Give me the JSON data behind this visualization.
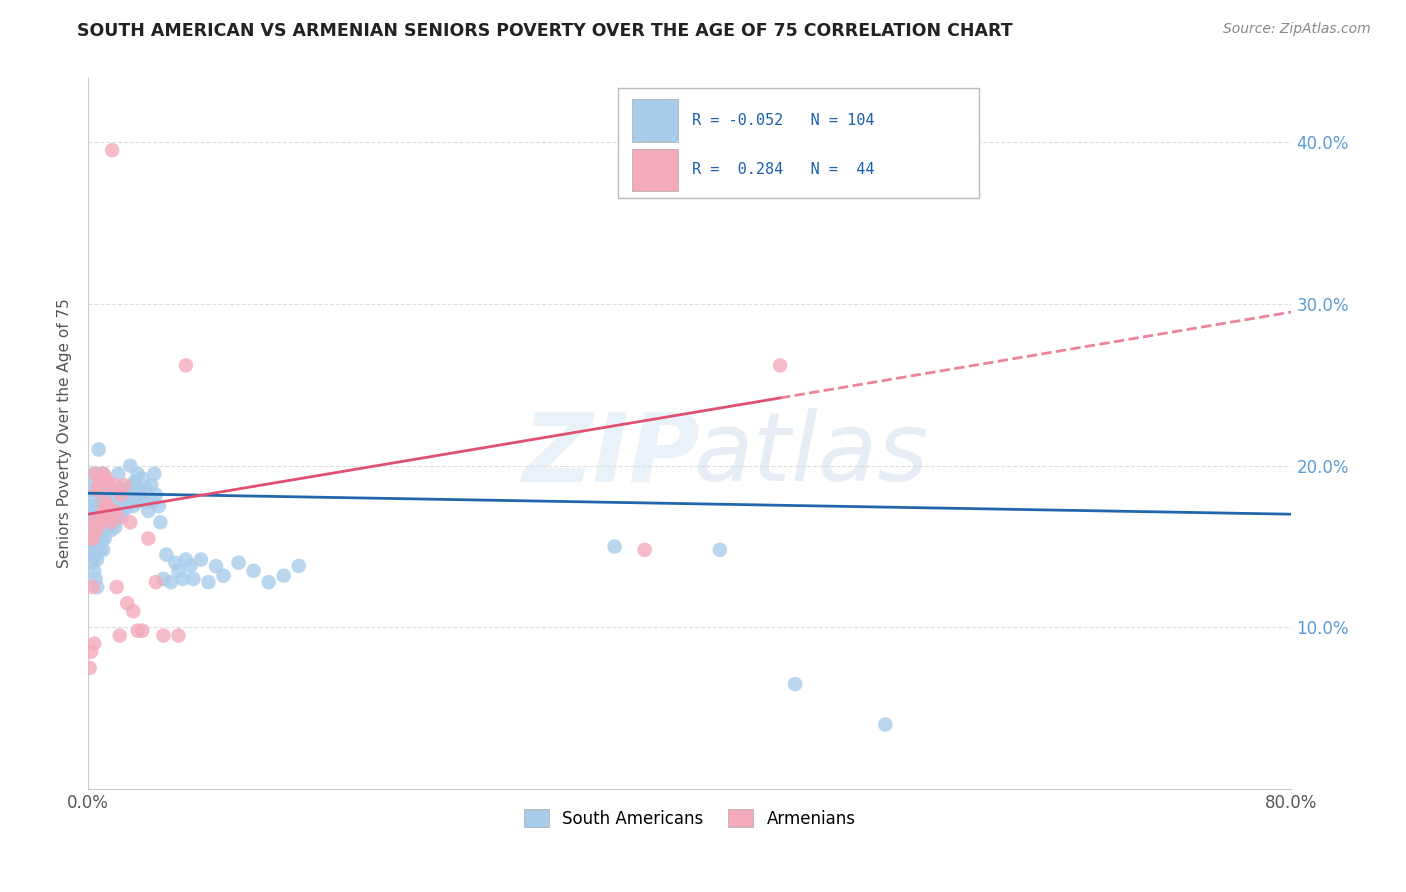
{
  "title": "SOUTH AMERICAN VS ARMENIAN SENIORS POVERTY OVER THE AGE OF 75 CORRELATION CHART",
  "source": "Source: ZipAtlas.com",
  "ylabel": "Seniors Poverty Over the Age of 75",
  "r_south_american": -0.052,
  "n_south_american": 104,
  "r_armenian": 0.284,
  "n_armenian": 44,
  "south_american_color": "#A8CCEA",
  "armenian_color": "#F4AABB",
  "trend_sa_color": "#2166AC",
  "trend_arm_color": "#E05070",
  "background_color": "#FFFFFF",
  "grid_color": "#DDDDDD",
  "sa_x": [
    0.001,
    0.001,
    0.001,
    0.002,
    0.002,
    0.002,
    0.002,
    0.002,
    0.003,
    0.003,
    0.003,
    0.003,
    0.003,
    0.004,
    0.004,
    0.004,
    0.004,
    0.004,
    0.005,
    0.005,
    0.005,
    0.005,
    0.005,
    0.006,
    0.006,
    0.006,
    0.006,
    0.007,
    0.007,
    0.007,
    0.008,
    0.008,
    0.008,
    0.009,
    0.009,
    0.009,
    0.01,
    0.01,
    0.01,
    0.011,
    0.011,
    0.012,
    0.012,
    0.013,
    0.013,
    0.014,
    0.015,
    0.015,
    0.016,
    0.017,
    0.018,
    0.018,
    0.019,
    0.02,
    0.02,
    0.021,
    0.022,
    0.022,
    0.023,
    0.024,
    0.025,
    0.026,
    0.027,
    0.028,
    0.028,
    0.029,
    0.03,
    0.031,
    0.032,
    0.033,
    0.034,
    0.035,
    0.036,
    0.038,
    0.039,
    0.04,
    0.042,
    0.043,
    0.044,
    0.045,
    0.047,
    0.048,
    0.05,
    0.052,
    0.055,
    0.058,
    0.06,
    0.063,
    0.065,
    0.068,
    0.07,
    0.075,
    0.08,
    0.085,
    0.09,
    0.1,
    0.11,
    0.12,
    0.13,
    0.14,
    0.35,
    0.42,
    0.47,
    0.53
  ],
  "sa_y": [
    0.15,
    0.16,
    0.17,
    0.145,
    0.155,
    0.165,
    0.175,
    0.185,
    0.14,
    0.15,
    0.16,
    0.17,
    0.18,
    0.135,
    0.148,
    0.16,
    0.172,
    0.195,
    0.13,
    0.145,
    0.158,
    0.17,
    0.19,
    0.125,
    0.142,
    0.165,
    0.185,
    0.155,
    0.175,
    0.21,
    0.148,
    0.168,
    0.188,
    0.155,
    0.178,
    0.195,
    0.148,
    0.168,
    0.195,
    0.155,
    0.178,
    0.162,
    0.185,
    0.165,
    0.19,
    0.17,
    0.16,
    0.185,
    0.172,
    0.165,
    0.162,
    0.182,
    0.168,
    0.172,
    0.195,
    0.178,
    0.168,
    0.185,
    0.178,
    0.172,
    0.182,
    0.175,
    0.185,
    0.178,
    0.2,
    0.188,
    0.175,
    0.19,
    0.182,
    0.195,
    0.185,
    0.178,
    0.192,
    0.178,
    0.185,
    0.172,
    0.188,
    0.178,
    0.195,
    0.182,
    0.175,
    0.165,
    0.13,
    0.145,
    0.128,
    0.14,
    0.135,
    0.13,
    0.142,
    0.138,
    0.13,
    0.142,
    0.128,
    0.138,
    0.132,
    0.14,
    0.135,
    0.128,
    0.132,
    0.138,
    0.15,
    0.148,
    0.065,
    0.04
  ],
  "arm_x": [
    0.001,
    0.002,
    0.002,
    0.003,
    0.003,
    0.004,
    0.004,
    0.005,
    0.005,
    0.006,
    0.006,
    0.007,
    0.007,
    0.008,
    0.008,
    0.009,
    0.01,
    0.01,
    0.011,
    0.012,
    0.012,
    0.013,
    0.014,
    0.015,
    0.016,
    0.017,
    0.018,
    0.019,
    0.02,
    0.021,
    0.022,
    0.024,
    0.026,
    0.028,
    0.03,
    0.033,
    0.036,
    0.04,
    0.045,
    0.05,
    0.06,
    0.065,
    0.37,
    0.46
  ],
  "arm_y": [
    0.075,
    0.085,
    0.155,
    0.125,
    0.155,
    0.09,
    0.165,
    0.16,
    0.195,
    0.162,
    0.185,
    0.165,
    0.188,
    0.168,
    0.192,
    0.168,
    0.172,
    0.195,
    0.178,
    0.168,
    0.192,
    0.175,
    0.188,
    0.165,
    0.395,
    0.172,
    0.188,
    0.125,
    0.168,
    0.095,
    0.182,
    0.188,
    0.115,
    0.165,
    0.11,
    0.098,
    0.098,
    0.155,
    0.128,
    0.095,
    0.095,
    0.262,
    0.148,
    0.262
  ],
  "xlim": [
    0,
    0.8
  ],
  "ylim": [
    0,
    0.44
  ],
  "xtick_positions": [
    0.0,
    0.1,
    0.2,
    0.3,
    0.4,
    0.5,
    0.6,
    0.7,
    0.8
  ],
  "ytick_positions": [
    0.0,
    0.1,
    0.2,
    0.3,
    0.4
  ]
}
